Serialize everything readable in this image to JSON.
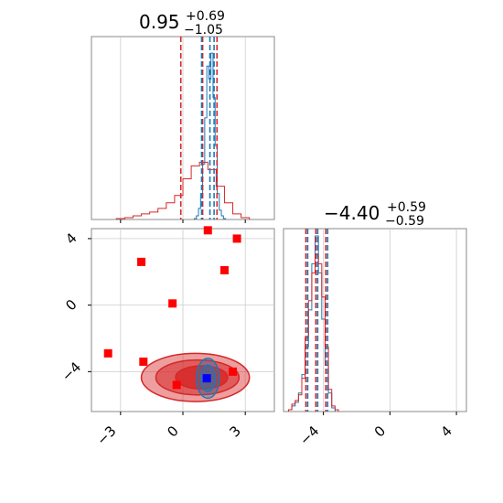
{
  "colors": {
    "blue": "#1f77b4",
    "red": "#d62728",
    "marker_red": "#ff0000",
    "marker_blue": "#0000ff",
    "grid": "#cccccc",
    "frame": "#888888"
  },
  "chart_data": [
    {
      "type": "histogram",
      "panel": "top-left marginal",
      "title": {
        "value": "0.95",
        "plus": "+0.69",
        "minus": "−1.05"
      },
      "xlim": [
        -4.4,
        4.4
      ],
      "grid": true,
      "xticks": [
        -3,
        0,
        3
      ],
      "quantile_lines": [
        {
          "color": "red",
          "x": [
            -0.1,
            0.95,
            1.64
          ]
        },
        {
          "color": "blue",
          "x": [
            0.9,
            1.3,
            1.5
          ]
        }
      ],
      "series": [
        {
          "color": "blue",
          "x": [
            0.6,
            0.7,
            0.8,
            0.9,
            1.0,
            1.1,
            1.2,
            1.3,
            1.4,
            1.5,
            1.6,
            1.7,
            1.8,
            1.9,
            2.0
          ],
          "values": [
            0.005,
            0.02,
            0.06,
            0.14,
            0.3,
            0.55,
            0.83,
            0.76,
            0.9,
            0.66,
            0.4,
            0.14,
            0.05,
            0.02,
            0.005
          ]
        },
        {
          "color": "red",
          "x": [
            -3.0,
            -2.6,
            -2.2,
            -1.8,
            -1.4,
            -1.0,
            -0.6,
            -0.2,
            0.2,
            0.6,
            1.0,
            1.4,
            1.8,
            2.2,
            2.6,
            3.0
          ],
          "values": [
            0.005,
            0.01,
            0.02,
            0.03,
            0.04,
            0.06,
            0.09,
            0.13,
            0.22,
            0.29,
            0.31,
            0.27,
            0.18,
            0.09,
            0.03,
            0.01
          ]
        }
      ]
    },
    {
      "type": "scatter",
      "panel": "bottom-left joint",
      "xlim": [
        -4.4,
        4.4
      ],
      "ylim": [
        -6.4,
        4.6
      ],
      "grid": true,
      "xticks": [
        -3,
        0,
        3
      ],
      "yticks": [
        4,
        0,
        -4
      ],
      "xtick_labels": [
        "−3",
        "0",
        "3"
      ],
      "ytick_labels": [
        "4",
        "0",
        "−4"
      ],
      "red_points": [
        [
          1.2,
          4.5
        ],
        [
          2.6,
          4.0
        ],
        [
          -2.0,
          2.6
        ],
        [
          2.0,
          2.1
        ],
        [
          -0.5,
          0.1
        ],
        [
          -3.6,
          -2.9
        ],
        [
          -1.9,
          -3.4
        ],
        [
          2.4,
          -4.0
        ],
        [
          -0.3,
          -4.8
        ]
      ],
      "blue_point": [
        1.15,
        -4.4
      ],
      "red_contours": [
        {
          "level": "outer",
          "cx": 0.6,
          "cy": -4.35,
          "rx": 2.6,
          "ry": 1.45
        },
        {
          "level": "middle",
          "cx": 0.7,
          "cy": -4.35,
          "rx": 2.0,
          "ry": 1.05
        },
        {
          "level": "inner",
          "cx": 0.9,
          "cy": -4.35,
          "rx": 1.25,
          "ry": 0.7
        }
      ],
      "blue_contours": [
        {
          "level": "outer",
          "cx": 1.2,
          "cy": -4.4,
          "rx": 0.55,
          "ry": 1.2
        },
        {
          "level": "inner",
          "cx": 1.2,
          "cy": -4.4,
          "rx": 0.35,
          "ry": 0.8
        }
      ]
    },
    {
      "type": "histogram",
      "panel": "bottom-right marginal",
      "title": {
        "value": "−4.40",
        "plus": "+0.59",
        "minus": "−0.59"
      },
      "xlim": [
        -6.4,
        4.6
      ],
      "grid": true,
      "xticks": [
        -4,
        0,
        4
      ],
      "xtick_labels": [
        "−4",
        "0",
        "4"
      ],
      "quantile_lines": [
        {
          "color": "red",
          "x": [
            -5.0,
            -4.4,
            -3.8
          ]
        },
        {
          "color": "blue",
          "x": [
            -5.0,
            -4.4,
            -3.8
          ]
        }
      ],
      "series": [
        {
          "color": "blue",
          "x": [
            -6.0,
            -5.8,
            -5.6,
            -5.4,
            -5.2,
            -5.0,
            -4.8,
            -4.6,
            -4.4,
            -4.2,
            -4.0,
            -3.8,
            -3.6,
            -3.4
          ],
          "values": [
            0.01,
            0.03,
            0.05,
            0.1,
            0.2,
            0.35,
            0.55,
            0.8,
            0.95,
            0.75,
            0.5,
            0.25,
            0.1,
            0.02
          ]
        },
        {
          "color": "red",
          "x": [
            -6.0,
            -5.8,
            -5.6,
            -5.4,
            -5.2,
            -5.0,
            -4.8,
            -4.6,
            -4.4,
            -4.2,
            -4.0,
            -3.8,
            -3.6,
            -3.4,
            -3.2
          ],
          "values": [
            0.01,
            0.04,
            0.06,
            0.09,
            0.18,
            0.4,
            0.6,
            0.75,
            0.85,
            0.8,
            0.62,
            0.35,
            0.12,
            0.03,
            0.01
          ]
        }
      ]
    }
  ]
}
